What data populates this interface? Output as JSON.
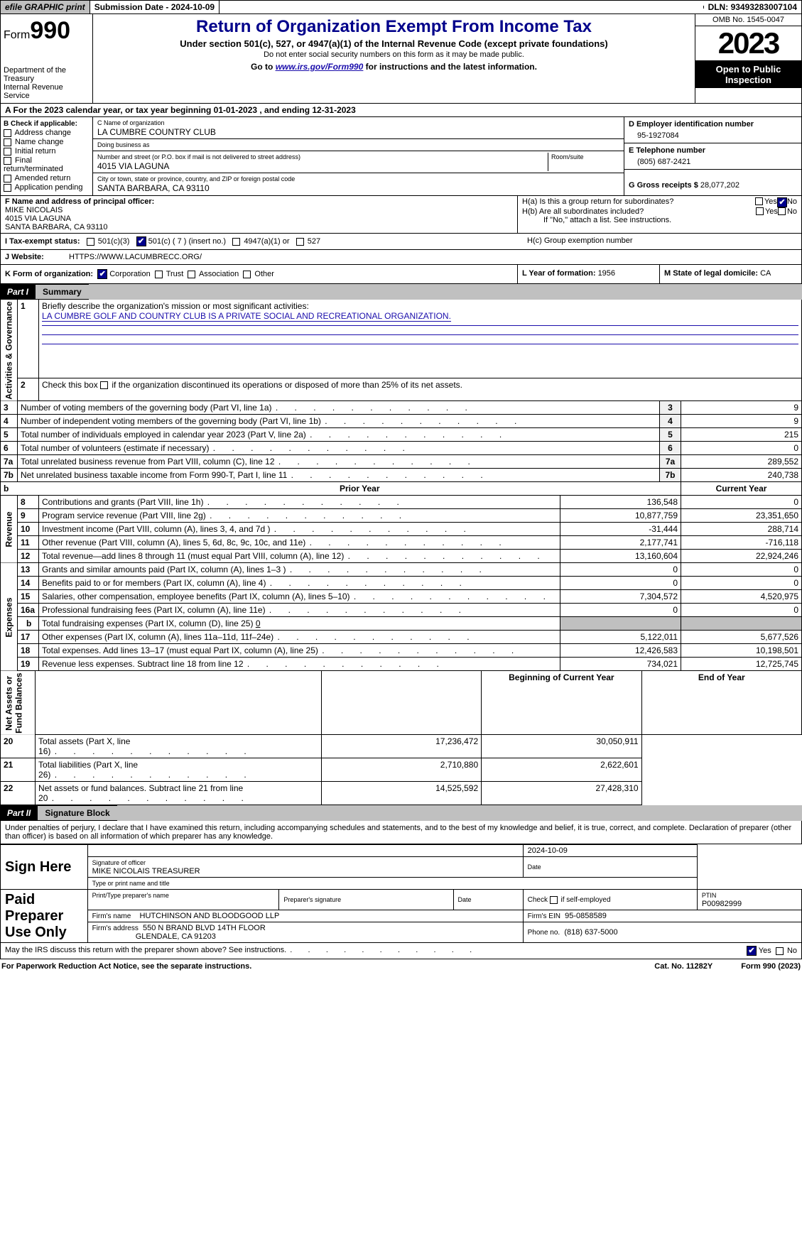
{
  "topbar": {
    "efile": "efile GRAPHIC print",
    "subdate_label": "Submission Date - ",
    "subdate": "2024-10-09",
    "dln_label": "DLN: ",
    "dln": "93493283007104"
  },
  "header": {
    "form_prefix": "Form",
    "form_num": "990",
    "dept": "Department of the Treasury\nInternal Revenue Service",
    "title": "Return of Organization Exempt From Income Tax",
    "sub": "Under section 501(c), 527, or 4947(a)(1) of the Internal Revenue Code (except private foundations)",
    "note": "Do not enter social security numbers on this form as it may be made public.",
    "goto_pre": "Go to ",
    "goto_link": "www.irs.gov/Form990",
    "goto_post": " for instructions and the latest information.",
    "omb": "OMB No. 1545-0047",
    "year": "2023",
    "open": "Open to Public Inspection"
  },
  "taxyear": {
    "text": "A For the 2023 calendar year, or tax year beginning 01-01-2023    , and ending 12-31-2023"
  },
  "B": {
    "label": "B Check if applicable:",
    "items": [
      "Address change",
      "Name change",
      "Initial return",
      "Final return/terminated",
      "Amended return",
      "Application pending"
    ]
  },
  "C": {
    "name_label": "C Name of organization",
    "name": "LA CUMBRE COUNTRY CLUB",
    "dba_label": "Doing business as",
    "dba": "",
    "street_label": "Number and street (or P.O. box if mail is not delivered to street address)",
    "street": "4015 VIA LAGUNA",
    "room_label": "Room/suite",
    "room": "",
    "city_label": "City or town, state or province, country, and ZIP or foreign postal code",
    "city": "SANTA BARBARA, CA   93110"
  },
  "D": {
    "label": "D Employer identification number",
    "val": "95-1927084"
  },
  "E": {
    "label": "E Telephone number",
    "val": "(805) 687-2421"
  },
  "G": {
    "label": "G Gross receipts $ ",
    "val": "28,077,202"
  },
  "F": {
    "label": "F   Name and address of principal officer:",
    "name": "MIKE NICOLAIS",
    "street": "4015 VIA LAGUNA",
    "city": "SANTA BARBARA, CA   93110"
  },
  "H": {
    "a": "H(a)  Is this a group return for subordinates?",
    "b": "H(b)  Are all subordinates included?",
    "note": "If \"No,\" attach a list. See instructions.",
    "c": "H(c)  Group exemption number",
    "yes": "Yes",
    "no": "No"
  },
  "I": {
    "label": "I   Tax-exempt status:",
    "c3": "501(c)(3)",
    "c": "501(c) ( 7 ) (insert no.)",
    "a1": "4947(a)(1) or",
    "s527": "527"
  },
  "J": {
    "label": "J   Website:",
    "val": "HTTPS://WWW.LACUMBRECC.ORG/"
  },
  "K": {
    "label": "K Form of organization:",
    "corp": "Corporation",
    "trust": "Trust",
    "assoc": "Association",
    "other": "Other"
  },
  "L": {
    "label": "L Year of formation: ",
    "val": "1956"
  },
  "M": {
    "label": "M State of legal domicile: ",
    "val": "CA"
  },
  "part1": {
    "num": "Part I",
    "title": "Summary"
  },
  "summary": {
    "line1": {
      "label": "Briefly describe the organization's mission or most significant activities:",
      "val": "LA CUMBRE GOLF AND COUNTRY CLUB IS A PRIVATE SOCIAL AND RECREATIONAL ORGANIZATION."
    },
    "line2": "Check this box        if the organization discontinued its operations or disposed of more than 25% of its net assets.",
    "gov": [
      {
        "n": "3",
        "t": "Number of voting members of the governing body (Part VI, line 1a)",
        "v": "9"
      },
      {
        "n": "4",
        "t": "Number of independent voting members of the governing body (Part VI, line 1b)",
        "v": "9"
      },
      {
        "n": "5",
        "t": "Total number of individuals employed in calendar year 2023 (Part V, line 2a)",
        "v": "215"
      },
      {
        "n": "6",
        "t": "Total number of volunteers (estimate if necessary)",
        "v": "0"
      },
      {
        "n": "7a",
        "t": "Total unrelated business revenue from Part VIII, column (C), line 12",
        "v": "289,552"
      },
      {
        "n": "7b",
        "t": "Net unrelated business taxable income from Form 990-T, Part I, line 11",
        "v": "240,738"
      }
    ],
    "vlabels": {
      "gov": "Activities & Governance",
      "rev": "Revenue",
      "exp": "Expenses",
      "net": "Net Assets or\nFund Balances"
    },
    "cols": {
      "prior": "Prior Year",
      "current": "Current Year",
      "begin": "Beginning of Current Year",
      "end": "End of Year"
    },
    "rev": [
      {
        "n": "8",
        "t": "Contributions and grants (Part VIII, line 1h)",
        "p": "136,548",
        "c": "0"
      },
      {
        "n": "9",
        "t": "Program service revenue (Part VIII, line 2g)",
        "p": "10,877,759",
        "c": "23,351,650"
      },
      {
        "n": "10",
        "t": "Investment income (Part VIII, column (A), lines 3, 4, and 7d )",
        "p": "-31,444",
        "c": "288,714"
      },
      {
        "n": "11",
        "t": "Other revenue (Part VIII, column (A), lines 5, 6d, 8c, 9c, 10c, and 11e)",
        "p": "2,177,741",
        "c": "-716,118"
      },
      {
        "n": "12",
        "t": "Total revenue—add lines 8 through 11 (must equal Part VIII, column (A), line 12)",
        "p": "13,160,604",
        "c": "22,924,246"
      }
    ],
    "exp": [
      {
        "n": "13",
        "t": "Grants and similar amounts paid (Part IX, column (A), lines 1–3 )",
        "p": "0",
        "c": "0"
      },
      {
        "n": "14",
        "t": "Benefits paid to or for members (Part IX, column (A), line 4)",
        "p": "0",
        "c": "0"
      },
      {
        "n": "15",
        "t": "Salaries, other compensation, employee benefits (Part IX, column (A), lines 5–10)",
        "p": "7,304,572",
        "c": "4,520,975"
      },
      {
        "n": "16a",
        "t": "Professional fundraising fees (Part IX, column (A), line 11e)",
        "p": "0",
        "c": "0"
      }
    ],
    "exp16b": {
      "n": "b",
      "t": "Total fundraising expenses (Part IX, column (D), line 25)",
      "v": "0"
    },
    "exp2": [
      {
        "n": "17",
        "t": "Other expenses (Part IX, column (A), lines 11a–11d, 11f–24e)",
        "p": "5,122,011",
        "c": "5,677,526"
      },
      {
        "n": "18",
        "t": "Total expenses. Add lines 13–17 (must equal Part IX, column (A), line 25)",
        "p": "12,426,583",
        "c": "10,198,501"
      },
      {
        "n": "19",
        "t": "Revenue less expenses. Subtract line 18 from line 12",
        "p": "734,021",
        "c": "12,725,745"
      }
    ],
    "net": [
      {
        "n": "20",
        "t": "Total assets (Part X, line 16)",
        "p": "17,236,472",
        "c": "30,050,911"
      },
      {
        "n": "21",
        "t": "Total liabilities (Part X, line 26)",
        "p": "2,710,880",
        "c": "2,622,601"
      },
      {
        "n": "22",
        "t": "Net assets or fund balances. Subtract line 21 from line 20",
        "p": "14,525,592",
        "c": "27,428,310"
      }
    ]
  },
  "part2": {
    "num": "Part II",
    "title": "Signature Block"
  },
  "penalty": "Under penalties of perjury, I declare that I have examined this return, including accompanying schedules and statements, and to the best of my knowledge and belief, it is true, correct, and complete. Declaration of preparer (other than officer) is based on all information of which preparer has any knowledge.",
  "sign": {
    "here": "Sign Here",
    "sigoff": "Signature of officer",
    "officer": "MIKE NICOLAIS  TREASURER",
    "type": "Type or print name and title",
    "date": "Date",
    "sigdate": "2024-10-09",
    "paid": "Paid Preparer Use Only",
    "prep_name_label": "Print/Type preparer's name",
    "prep_sig_label": "Preparer's signature",
    "check_self": "Check         if self-employed",
    "ptin_label": "PTIN",
    "ptin": "P00982999",
    "firm_label": "Firm's name",
    "firm": "HUTCHINSON AND BLOODGOOD LLP",
    "firm_ein_label": "Firm's EIN",
    "firm_ein": "95-0858589",
    "firm_addr_label": "Firm's address",
    "firm_addr1": "550 N BRAND BLVD 14TH FLOOR",
    "firm_addr2": "GLENDALE, CA   91203",
    "phone_label": "Phone no.",
    "phone": "(818) 637-5000",
    "discuss": "May the IRS discuss this return with the preparer shown above? See instructions.",
    "yes": "Yes",
    "no": "No"
  },
  "footer": {
    "pra": "For Paperwork Reduction Act Notice, see the separate instructions.",
    "cat": "Cat. No. 11282Y",
    "form": "Form 990 (2023)"
  }
}
